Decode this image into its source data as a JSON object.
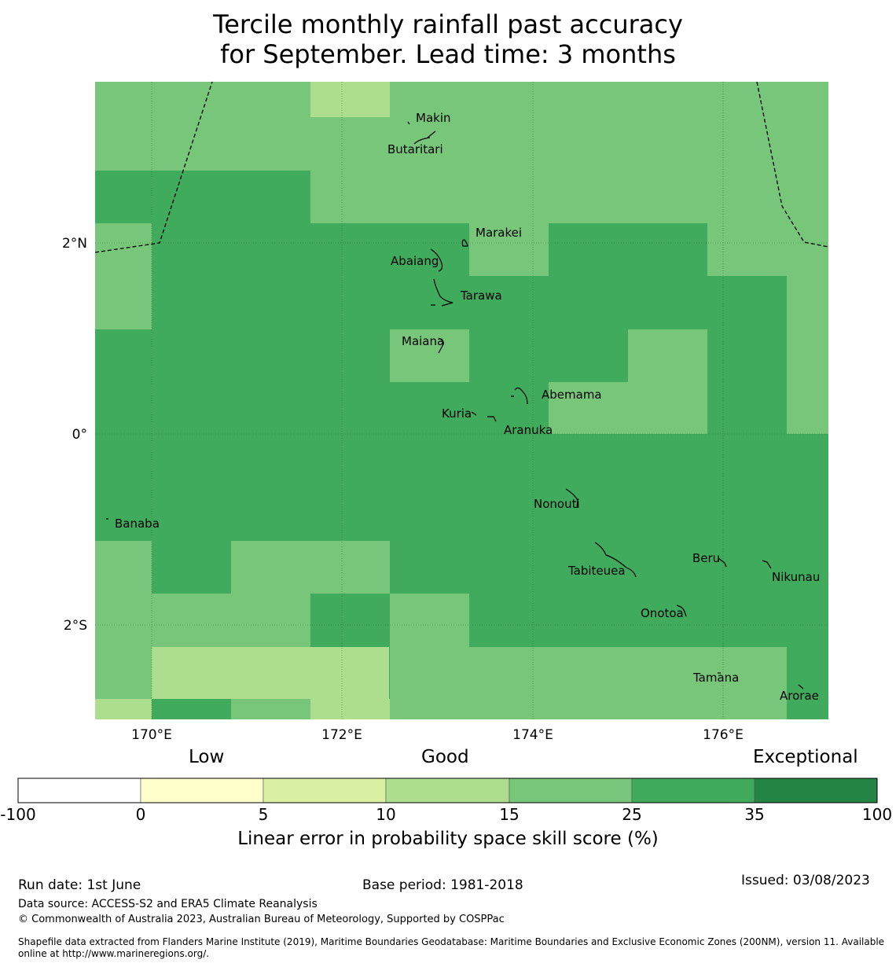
{
  "title": {
    "line1": "Tercile monthly rainfall past accuracy",
    "line2": "for September. Lead time: 3 months"
  },
  "map": {
    "lon_ticks": [
      "170°E",
      "172°E",
      "174°E",
      "176°E"
    ],
    "lat_ticks": [
      "2°N",
      "0°",
      "2°S"
    ],
    "places": [
      "Makin",
      "Butaritari",
      "Marakei",
      "Abaiang",
      "Tarawa",
      "Maiana",
      "Abemama",
      "Kuria",
      "Aranuka",
      "Nonouti",
      "Banaba",
      "Beru",
      "Nikunau",
      "Tabiteuea",
      "Onotoa",
      "Tamana",
      "Arorae"
    ],
    "category_colors": {
      "lt_0": "#ffffff",
      "0_5": "#ffffcc",
      "5_10": "#d9f0a3",
      "10_15": "#addd8e",
      "15_25": "#78c679",
      "25_35": "#41ab5d",
      "35_100": "#238443"
    }
  },
  "colorbar": {
    "categories": [
      "Low",
      "Good",
      "Exceptional"
    ],
    "ticks": [
      "-100",
      "0",
      "5",
      "10",
      "15",
      "25",
      "35",
      "100"
    ],
    "colors": [
      "#ffffff",
      "#ffffcc",
      "#d9f0a3",
      "#addd8e",
      "#78c679",
      "#41ab5d",
      "#238443"
    ],
    "label": "Linear error in probability space skill score (%)"
  },
  "footer": {
    "run_date": "Run date: 1st June",
    "base_period": "Base period: 1981-2018",
    "issued": "Issued: 03/08/2023",
    "data_source": "Data source: ACCESS-S2 and ERA5 Climate Reanalysis",
    "copyright": "© Commonwealth of Australia 2023, Australian Bureau of Meteorology, Supported by COSPPac",
    "shapefile_line1": "Shapefile data extracted from Flanders Marine Institute (2019), Maritime Boundaries Geodatabase: Maritime Boundaries and Exclusive Economic Zones (200NM), version 11. Available",
    "shapefile_line2": "online at http://www.marineregions.org/."
  }
}
